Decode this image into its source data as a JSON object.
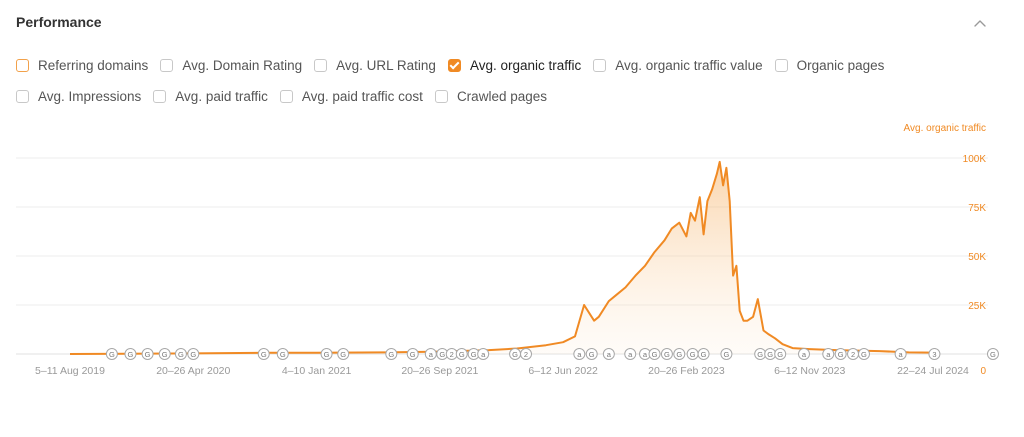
{
  "header": {
    "title": "Performance"
  },
  "icons": {
    "collapse": "chevron-up-icon"
  },
  "colors": {
    "accent": "#f08a24",
    "grid": "#ececec",
    "axis_text": "#999999"
  },
  "metrics": [
    [
      {
        "label": "Referring domains",
        "checked": false,
        "accent_border": true
      },
      {
        "label": "Avg. Domain Rating",
        "checked": false
      },
      {
        "label": "Avg. URL Rating",
        "checked": false
      },
      {
        "label": "Avg. organic traffic",
        "checked": true
      },
      {
        "label": "Avg. organic traffic value",
        "checked": false
      },
      {
        "label": "Organic pages",
        "checked": false
      }
    ],
    [
      {
        "label": "Avg. Impressions",
        "checked": false
      },
      {
        "label": "Avg. paid traffic",
        "checked": false
      },
      {
        "label": "Avg. paid traffic cost",
        "checked": false
      },
      {
        "label": "Crawled pages",
        "checked": false
      }
    ]
  ],
  "chart_data": {
    "type": "area",
    "series": [
      {
        "name": "Avg. organic traffic",
        "color": "#f08a24",
        "x": [
          "2019-08-05",
          "2020-04-20",
          "2020-10-01",
          "2021-01-04",
          "2021-06-01",
          "2021-09-20",
          "2022-01-01",
          "2022-03-01",
          "2022-05-01",
          "2022-06-06",
          "2022-07-01",
          "2022-07-20",
          "2022-08-10",
          "2022-08-20",
          "2022-09-10",
          "2022-09-25",
          "2022-10-15",
          "2022-11-05",
          "2022-11-25",
          "2022-12-15",
          "2023-01-05",
          "2023-01-20",
          "2023-02-05",
          "2023-02-20",
          "2023-03-01",
          "2023-03-10",
          "2023-03-20",
          "2023-03-28",
          "2023-04-05",
          "2023-04-15",
          "2023-04-25",
          "2023-05-01",
          "2023-05-08",
          "2023-05-15",
          "2023-05-22",
          "2023-05-29",
          "2023-06-05",
          "2023-06-12",
          "2023-06-20",
          "2023-06-28",
          "2023-07-10",
          "2023-07-20",
          "2023-08-01",
          "2023-08-12",
          "2023-08-25",
          "2023-09-10",
          "2023-10-01",
          "2023-11-06",
          "2024-01-01",
          "2024-04-01",
          "2024-06-01",
          "2024-07-22"
        ],
        "values": [
          0,
          300,
          600,
          600,
          800,
          1200,
          2000,
          2800,
          4500,
          6000,
          9000,
          25000,
          17000,
          19000,
          27000,
          30000,
          34000,
          40000,
          45000,
          52000,
          58000,
          64000,
          67000,
          60000,
          72000,
          68000,
          80000,
          61000,
          78000,
          84000,
          92000,
          98000,
          86000,
          95000,
          78000,
          40000,
          45000,
          22000,
          17000,
          17000,
          19000,
          28000,
          12000,
          10000,
          8000,
          5000,
          3000,
          2500,
          2000,
          1500,
          800,
          700
        ]
      }
    ],
    "x_ticks": [
      "5–11 Aug 2019",
      "20–26 Apr 2020",
      "4–10 Jan 2021",
      "20–26 Sep 2021",
      "6–12 Jun 2022",
      "20–26 Feb 2023",
      "6–12 Nov 2023",
      "22–24 Jul 2024"
    ],
    "x_tick_dates": [
      "2019-08-05",
      "2020-04-20",
      "2021-01-04",
      "2021-09-20",
      "2022-06-06",
      "2023-02-20",
      "2023-11-06",
      "2024-07-22"
    ],
    "y_ticks": [
      "0",
      "25K",
      "50K",
      "75K",
      "100K"
    ],
    "y_tick_values": [
      0,
      25000,
      50000,
      75000,
      100000
    ],
    "ylim": [
      0,
      100000
    ],
    "y_axis_label": "Avg. organic traffic",
    "y_axis_side": "right",
    "grid": true,
    "annotations": [
      {
        "date": "2019-11-01",
        "label": "G"
      },
      {
        "date": "2019-12-10",
        "label": "G"
      },
      {
        "date": "2020-01-15",
        "label": "G"
      },
      {
        "date": "2020-02-20",
        "label": "G"
      },
      {
        "date": "2020-03-25",
        "label": "G"
      },
      {
        "date": "2020-04-20",
        "label": "G"
      },
      {
        "date": "2020-09-15",
        "label": "G"
      },
      {
        "date": "2020-10-25",
        "label": "G"
      },
      {
        "date": "2021-01-25",
        "label": "G"
      },
      {
        "date": "2021-03-01",
        "label": "G"
      },
      {
        "date": "2021-06-10",
        "label": "G"
      },
      {
        "date": "2021-07-25",
        "label": "G"
      },
      {
        "date": "2021-09-01",
        "label": "a"
      },
      {
        "date": "2021-09-25",
        "label": "G"
      },
      {
        "date": "2021-10-15",
        "label": "2"
      },
      {
        "date": "2021-11-05",
        "label": "G"
      },
      {
        "date": "2021-11-30",
        "label": "G"
      },
      {
        "date": "2021-12-20",
        "label": "a"
      },
      {
        "date": "2022-02-25",
        "label": "G"
      },
      {
        "date": "2022-03-20",
        "label": "2"
      },
      {
        "date": "2022-07-10",
        "label": "a"
      },
      {
        "date": "2022-08-05",
        "label": "G"
      },
      {
        "date": "2022-09-10",
        "label": "a"
      },
      {
        "date": "2022-10-25",
        "label": "a"
      },
      {
        "date": "2022-11-25",
        "label": "a"
      },
      {
        "date": "2022-12-15",
        "label": "G"
      },
      {
        "date": "2023-01-10",
        "label": "G"
      },
      {
        "date": "2023-02-05",
        "label": "G"
      },
      {
        "date": "2023-03-05",
        "label": "G"
      },
      {
        "date": "2023-03-28",
        "label": "G"
      },
      {
        "date": "2023-05-15",
        "label": "G"
      },
      {
        "date": "2023-07-25",
        "label": "G"
      },
      {
        "date": "2023-08-15",
        "label": "G"
      },
      {
        "date": "2023-09-05",
        "label": "G"
      },
      {
        "date": "2023-10-25",
        "label": "a"
      },
      {
        "date": "2023-12-15",
        "label": "a"
      },
      {
        "date": "2024-01-10",
        "label": "G"
      },
      {
        "date": "2024-02-05",
        "label": "2"
      },
      {
        "date": "2024-02-28",
        "label": "G"
      },
      {
        "date": "2024-05-15",
        "label": "a"
      },
      {
        "date": "2024-07-25",
        "label": "3"
      },
      {
        "date": "2024-11-25",
        "label": "G"
      }
    ]
  }
}
